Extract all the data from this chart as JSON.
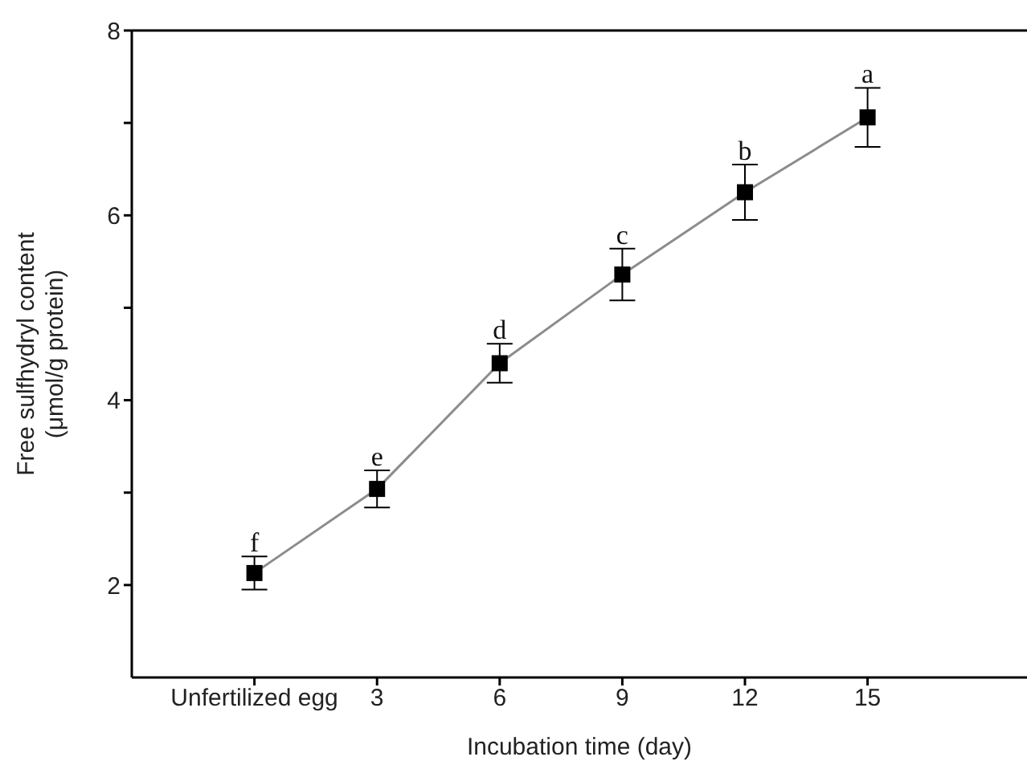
{
  "chart_data": {
    "type": "line",
    "xlabel": "Incubation time (day)",
    "ylabel": "Free sulfhydryl content\n(μmol/g protein)",
    "categories": [
      "Unfertilized egg",
      "3",
      "6",
      "9",
      "12",
      "15"
    ],
    "series": [
      {
        "color": "#000000",
        "values": [
          2.13,
          3.04,
          4.4,
          5.36,
          6.25,
          7.06
        ],
        "errors": [
          0.18,
          0.2,
          0.21,
          0.28,
          0.3,
          0.32
        ]
      }
    ],
    "ylim": [
      1,
      8
    ],
    "yticks": [
      2,
      {
        "value": 3,
        "label": null
      },
      4,
      {
        "value": 5,
        "label": null
      },
      6,
      {
        "value": 7,
        "label": null
      },
      8
    ],
    "marker": "square",
    "line_style": "solid",
    "grid": false,
    "legend": false,
    "annotations": [
      {
        "text": "f",
        "x": "Unfertilized egg",
        "y": 2.31
      },
      {
        "text": "e",
        "x": "3",
        "y": 3.24
      },
      {
        "text": "d",
        "x": "6",
        "y": 4.61
      },
      {
        "text": "c",
        "x": "9",
        "y": 5.64
      },
      {
        "text": "b",
        "x": "12",
        "y": 6.55
      },
      {
        "text": "a",
        "x": "15",
        "y": 7.38
      }
    ]
  }
}
